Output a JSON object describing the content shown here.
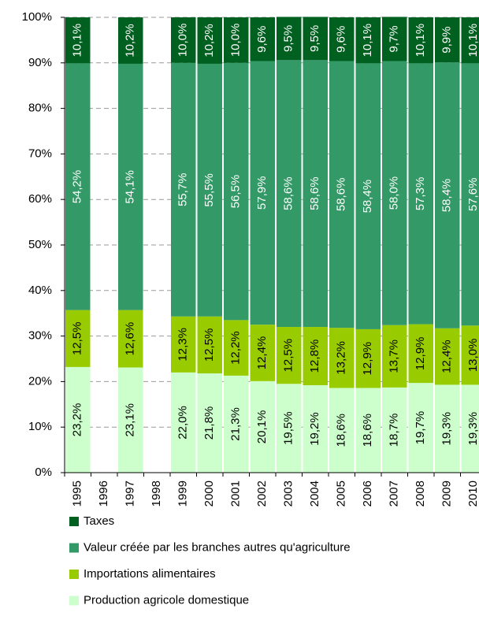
{
  "chart_data": {
    "type": "stacked_bar",
    "categories": [
      "1995",
      "1996",
      "1997",
      "1998",
      "1999",
      "2000",
      "2001",
      "2002",
      "2003",
      "2004",
      "2005",
      "2006",
      "2007",
      "2008",
      "2009",
      "2010"
    ],
    "series": [
      {
        "name": "Production agricole domestique",
        "color": "#ccffcc",
        "values": [
          23.2,
          null,
          23.1,
          null,
          22.0,
          21.8,
          21.3,
          20.1,
          19.5,
          19.2,
          18.6,
          18.6,
          18.7,
          19.7,
          19.3,
          19.3
        ],
        "value_labels": [
          "23,2%",
          null,
          "23,1%",
          null,
          "22,0%",
          "21,8%",
          "21,3%",
          "20,1%",
          "19,5%",
          "19,2%",
          "18,6%",
          "18,6%",
          "18,7%",
          "19,7%",
          "19,3%",
          "19,3%"
        ]
      },
      {
        "name": "Importations alimentaires",
        "color": "#99cc00",
        "values": [
          12.5,
          null,
          12.6,
          null,
          12.3,
          12.5,
          12.2,
          12.4,
          12.5,
          12.8,
          13.2,
          12.9,
          13.7,
          12.9,
          12.4,
          13.0
        ],
        "value_labels": [
          "12,5%",
          null,
          "12,6%",
          null,
          "12,3%",
          "12,5%",
          "12,2%",
          "12,4%",
          "12,5%",
          "12,8%",
          "13,2%",
          "12,9%",
          "13,7%",
          "12,9%",
          "12,4%",
          "13,0%"
        ]
      },
      {
        "name": "Valeur créée par les branches autres qu'agriculture",
        "color": "#339966",
        "values": [
          54.2,
          null,
          54.1,
          null,
          55.7,
          55.5,
          56.5,
          57.9,
          58.6,
          58.6,
          58.6,
          58.4,
          58.0,
          57.3,
          58.4,
          57.6
        ],
        "value_labels": [
          "54,2%",
          null,
          "54,1%",
          null,
          "55,7%",
          "55,5%",
          "56,5%",
          "57,9%",
          "58,6%",
          "58,6%",
          "58,6%",
          "58,4%",
          "58,0%",
          "57,3%",
          "58,4%",
          "57,6%"
        ]
      },
      {
        "name": "Taxes",
        "color": "#006020",
        "values": [
          10.1,
          null,
          10.2,
          null,
          10.0,
          10.2,
          10.0,
          9.6,
          9.5,
          9.5,
          9.6,
          10.1,
          9.7,
          10.1,
          9.9,
          10.1
        ],
        "value_labels": [
          "10,1%",
          null,
          "10,2%",
          null,
          "10,0%",
          "10,2%",
          "10,0%",
          "9,6%",
          "9,5%",
          "9,5%",
          "9,6%",
          "10,1%",
          "9,7%",
          "10,1%",
          "9,9%",
          "10,1%"
        ]
      }
    ],
    "ylim": [
      0,
      100
    ],
    "yticks": [
      {
        "value": 0,
        "label": "0%"
      },
      {
        "value": 10,
        "label": "10%"
      },
      {
        "value": 20,
        "label": "20%"
      },
      {
        "value": 30,
        "label": "30%"
      },
      {
        "value": 40,
        "label": "40%"
      },
      {
        "value": 50,
        "label": "50%"
      },
      {
        "value": 60,
        "label": "60%"
      },
      {
        "value": 70,
        "label": "70%"
      },
      {
        "value": 80,
        "label": "80%"
      },
      {
        "value": 90,
        "label": "90%"
      },
      {
        "value": 100,
        "label": "100%"
      }
    ],
    "grid": true
  }
}
